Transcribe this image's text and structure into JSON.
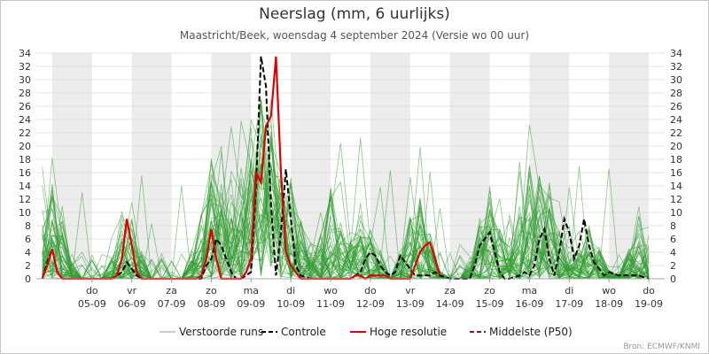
{
  "title": "Neerslag (mm, 6 uurlijks)",
  "subtitle": "Maastricht/Beek, woensdag 4 september 2024 (Versie wo 00 uur)",
  "source": "Bron: ECMWF/KNMI",
  "colors": {
    "ensemble": "#2e9a2e",
    "control": "#000000",
    "hires": "#e00000",
    "median": "#8b1a1a",
    "weekend_band": "#ececec",
    "grid": "#dcdcdc"
  },
  "chart_data": {
    "type": "line",
    "title": "Neerslag (mm, 6 uurlijks)",
    "subtitle": "Maastricht/Beek, woensdag 4 september 2024 (Versie wo 00 uur)",
    "ylim": [
      0,
      34
    ],
    "yticks": [
      0,
      2,
      4,
      6,
      8,
      10,
      12,
      14,
      16,
      18,
      20,
      22,
      24,
      26,
      28,
      30,
      32,
      34
    ],
    "y_axes": "left-and-right",
    "grid": true,
    "x_unit": "days since 4 September 2024 00 UTC",
    "xlim": [
      -0.4,
      15.4
    ],
    "days": [
      {
        "day": "do",
        "date": "05-09"
      },
      {
        "day": "vr",
        "date": "06-09"
      },
      {
        "day": "za",
        "date": "07-09"
      },
      {
        "day": "zo",
        "date": "08-09"
      },
      {
        "day": "ma",
        "date": "09-09"
      },
      {
        "day": "di",
        "date": "10-09"
      },
      {
        "day": "wo",
        "date": "11-09"
      },
      {
        "day": "do",
        "date": "12-09"
      },
      {
        "day": "vr",
        "date": "13-09"
      },
      {
        "day": "za",
        "date": "14-09"
      },
      {
        "day": "zo",
        "date": "15-09"
      },
      {
        "day": "ma",
        "date": "16-09"
      },
      {
        "day": "di",
        "date": "17-09"
      },
      {
        "day": "wo",
        "date": "18-09"
      },
      {
        "day": "do",
        "date": "19-09"
      }
    ],
    "legend_position": "bottom",
    "legend": [
      {
        "label": "Verstoorde runs",
        "style": "thin-green"
      },
      {
        "label": "Controle",
        "style": "black-dashed"
      },
      {
        "label": "Hoge resolutie",
        "style": "red-solid"
      },
      {
        "label": "Middelste (P50)",
        "style": "darkred-dashed"
      }
    ],
    "series": [
      {
        "name": "Controle",
        "points": [
          [
            -0.25,
            0
          ],
          [
            -0.125,
            2.5
          ],
          [
            0,
            4.5
          ],
          [
            0.125,
            1
          ],
          [
            0.25,
            0
          ],
          [
            0.5,
            0
          ],
          [
            1,
            0
          ],
          [
            1.25,
            0
          ],
          [
            1.5,
            0
          ],
          [
            1.75,
            1
          ],
          [
            1.875,
            2.5
          ],
          [
            2,
            1.5
          ],
          [
            2.125,
            0.5
          ],
          [
            2.25,
            0
          ],
          [
            3,
            0
          ],
          [
            3.5,
            0
          ],
          [
            3.75,
            0
          ],
          [
            3.875,
            2
          ],
          [
            4,
            3
          ],
          [
            4.125,
            6
          ],
          [
            4.25,
            5
          ],
          [
            4.375,
            3
          ],
          [
            4.5,
            1
          ],
          [
            4.625,
            0
          ],
          [
            4.75,
            0
          ],
          [
            5,
            1
          ],
          [
            5.125,
            14
          ],
          [
            5.25,
            33.5
          ],
          [
            5.375,
            29
          ],
          [
            5.5,
            11
          ],
          [
            5.625,
            0.5
          ],
          [
            5.75,
            7
          ],
          [
            5.875,
            16.5
          ],
          [
            6,
            9
          ],
          [
            6.125,
            2
          ],
          [
            6.25,
            0.5
          ],
          [
            6.5,
            0
          ],
          [
            7,
            0
          ],
          [
            7.5,
            0
          ],
          [
            7.75,
            1
          ],
          [
            7.875,
            3
          ],
          [
            8,
            4
          ],
          [
            8.125,
            3.5
          ],
          [
            8.25,
            2
          ],
          [
            8.375,
            1
          ],
          [
            8.5,
            0.5
          ],
          [
            8.625,
            1
          ],
          [
            8.75,
            3.5
          ],
          [
            8.875,
            2.5
          ],
          [
            9,
            1.5
          ],
          [
            9.125,
            0.5
          ],
          [
            9.25,
            0.5
          ],
          [
            9.5,
            0.5
          ],
          [
            9.625,
            1
          ],
          [
            9.75,
            0.5
          ],
          [
            10,
            0
          ],
          [
            10.25,
            0
          ],
          [
            10.5,
            0
          ],
          [
            10.625,
            2
          ],
          [
            10.75,
            5
          ],
          [
            10.875,
            6
          ],
          [
            11,
            7
          ],
          [
            11.125,
            4
          ],
          [
            11.25,
            1
          ],
          [
            11.375,
            0
          ],
          [
            11.5,
            0
          ],
          [
            11.75,
            0.5
          ],
          [
            11.875,
            1
          ],
          [
            12,
            0.5
          ],
          [
            12.125,
            2
          ],
          [
            12.25,
            6
          ],
          [
            12.375,
            7.5
          ],
          [
            12.5,
            3
          ],
          [
            12.625,
            0.5
          ],
          [
            12.75,
            4
          ],
          [
            12.875,
            9
          ],
          [
            13,
            7
          ],
          [
            13.125,
            3
          ],
          [
            13.25,
            5
          ],
          [
            13.375,
            9
          ],
          [
            13.5,
            5
          ],
          [
            13.625,
            2.5
          ],
          [
            13.75,
            1.5
          ],
          [
            13.875,
            0.5
          ],
          [
            14,
            1
          ],
          [
            14.25,
            0.5
          ],
          [
            14.5,
            0.5
          ],
          [
            14.75,
            0.5
          ],
          [
            15,
            0
          ]
        ]
      },
      {
        "name": "Hoge resolutie",
        "points": [
          [
            -0.25,
            0
          ],
          [
            -0.125,
            2
          ],
          [
            0,
            4.5
          ],
          [
            0.125,
            1
          ],
          [
            0.25,
            0
          ],
          [
            0.5,
            0
          ],
          [
            1,
            0
          ],
          [
            1.25,
            0
          ],
          [
            1.5,
            0
          ],
          [
            1.625,
            0.5
          ],
          [
            1.75,
            3
          ],
          [
            1.875,
            9
          ],
          [
            2,
            5
          ],
          [
            2.125,
            1
          ],
          [
            2.25,
            0
          ],
          [
            3,
            0
          ],
          [
            3.5,
            0
          ],
          [
            3.625,
            0
          ],
          [
            3.75,
            0.5
          ],
          [
            3.875,
            3
          ],
          [
            4,
            7.5
          ],
          [
            4.125,
            3
          ],
          [
            4.25,
            0
          ],
          [
            4.5,
            0
          ],
          [
            4.75,
            0
          ],
          [
            4.875,
            1
          ],
          [
            5,
            3
          ],
          [
            5.125,
            16
          ],
          [
            5.25,
            14.5
          ],
          [
            5.375,
            23
          ],
          [
            5.5,
            24.5
          ],
          [
            5.625,
            33.5
          ],
          [
            5.75,
            16
          ],
          [
            5.875,
            4
          ],
          [
            6,
            2
          ],
          [
            6.125,
            1
          ],
          [
            6.25,
            0
          ],
          [
            7,
            0
          ],
          [
            7.5,
            0
          ],
          [
            7.625,
            0.5
          ],
          [
            7.75,
            0.5
          ],
          [
            7.875,
            0
          ],
          [
            8,
            0.5
          ],
          [
            8.125,
            0.5
          ],
          [
            8.25,
            0.5
          ],
          [
            8.375,
            0.5
          ],
          [
            8.5,
            0
          ],
          [
            8.75,
            0
          ],
          [
            9,
            0
          ],
          [
            9.25,
            4
          ],
          [
            9.375,
            5
          ],
          [
            9.5,
            5.5
          ],
          [
            9.625,
            3
          ],
          [
            9.75,
            0.5
          ]
        ]
      }
    ]
  }
}
